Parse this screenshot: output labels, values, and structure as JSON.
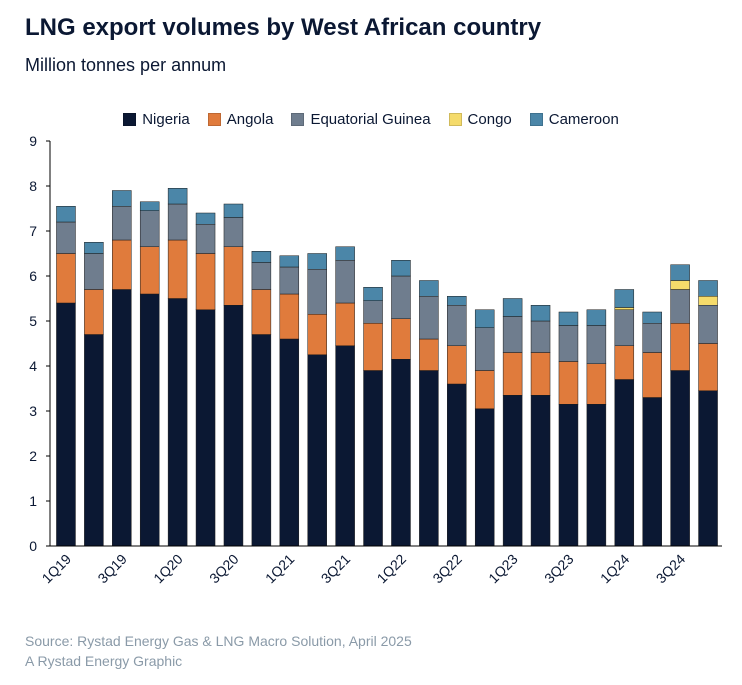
{
  "header": {
    "title": "LNG export volumes by West African country",
    "subtitle": "Million tonnes per annum"
  },
  "colors": {
    "Nigeria": "#0b1833",
    "Angola": "#e07b3c",
    "Equatorial Guinea": "#6f7d8e",
    "Congo": "#f5db6b",
    "Cameroon": "#4b86a8",
    "axis": "#000000",
    "text": "#0b1833"
  },
  "legend": {
    "items": [
      {
        "label": "Nigeria",
        "color": "#0b1833"
      },
      {
        "label": "Angola",
        "color": "#e07b3c"
      },
      {
        "label": "Equatorial Guinea",
        "color": "#6f7d8e"
      },
      {
        "label": "Congo",
        "color": "#f5db6b"
      },
      {
        "label": "Cameroon",
        "color": "#4b86a8"
      }
    ]
  },
  "chart_data": {
    "type": "bar",
    "stacked": true,
    "title": "LNG export volumes by West African country",
    "subtitle": "Million tonnes per annum",
    "xlabel": "",
    "ylabel": "",
    "ylim": [
      0,
      9
    ],
    "yticks": [
      0,
      1,
      2,
      3,
      4,
      5,
      6,
      7,
      8,
      9
    ],
    "grid": false,
    "legend_position": "top",
    "categories": [
      "1Q19",
      "2Q19",
      "3Q19",
      "4Q19",
      "1Q20",
      "2Q20",
      "3Q20",
      "4Q20",
      "1Q21",
      "2Q21",
      "3Q21",
      "4Q21",
      "1Q22",
      "2Q22",
      "3Q22",
      "4Q22",
      "1Q23",
      "2Q23",
      "3Q23",
      "4Q23",
      "1Q24",
      "2Q24",
      "3Q24",
      "4Q24"
    ],
    "xtick_labels": [
      "1Q19",
      "3Q19",
      "1Q20",
      "3Q20",
      "1Q21",
      "3Q21",
      "1Q22",
      "3Q22",
      "1Q23",
      "3Q23",
      "1Q24",
      "3Q24"
    ],
    "series": [
      {
        "name": "Nigeria",
        "values": [
          5.4,
          4.7,
          5.7,
          5.6,
          5.5,
          5.25,
          5.35,
          4.7,
          4.6,
          4.25,
          4.45,
          3.9,
          4.15,
          3.9,
          3.6,
          3.05,
          3.35,
          3.35,
          3.15,
          3.15,
          3.7,
          3.3,
          3.9,
          3.45
        ]
      },
      {
        "name": "Angola",
        "values": [
          1.1,
          1.0,
          1.1,
          1.05,
          1.3,
          1.25,
          1.3,
          1.0,
          1.0,
          0.9,
          0.95,
          1.05,
          0.9,
          0.7,
          0.85,
          0.85,
          0.95,
          0.95,
          0.95,
          0.9,
          0.75,
          1.0,
          1.05,
          1.05
        ]
      },
      {
        "name": "Equatorial Guinea",
        "values": [
          0.7,
          0.8,
          0.75,
          0.8,
          0.8,
          0.65,
          0.65,
          0.6,
          0.6,
          1.0,
          0.95,
          0.5,
          0.95,
          0.95,
          0.9,
          0.95,
          0.8,
          0.7,
          0.8,
          0.85,
          0.8,
          0.65,
          0.75,
          0.85
        ]
      },
      {
        "name": "Congo",
        "values": [
          0,
          0,
          0,
          0,
          0,
          0,
          0,
          0,
          0,
          0,
          0,
          0,
          0,
          0,
          0,
          0,
          0,
          0,
          0,
          0,
          0.05,
          0,
          0.2,
          0.2
        ]
      },
      {
        "name": "Cameroon",
        "values": [
          0.35,
          0.25,
          0.35,
          0.2,
          0.35,
          0.25,
          0.3,
          0.25,
          0.25,
          0.35,
          0.3,
          0.3,
          0.35,
          0.35,
          0.2,
          0.4,
          0.4,
          0.35,
          0.3,
          0.35,
          0.4,
          0.25,
          0.35,
          0.35
        ]
      }
    ]
  },
  "footer": {
    "source": "Source: Rystad Energy Gas & LNG Macro Solution, April 2025",
    "credit": "A Rystad Energy Graphic"
  }
}
